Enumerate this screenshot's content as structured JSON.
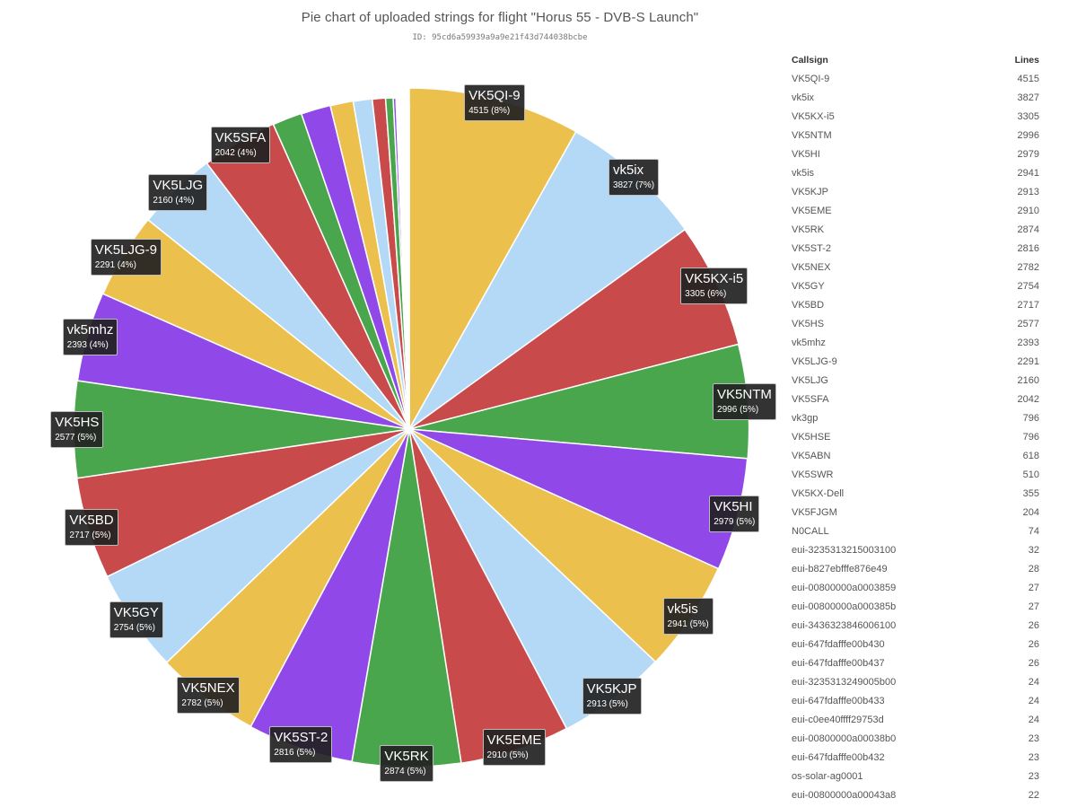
{
  "title": "Pie chart of uploaded strings for flight \"Horus 55 - DVB-S Launch\"",
  "subtitle": "ID: 95cd6a59939a9a9e21f43d744038bcbe",
  "table": {
    "headers": {
      "callsign": "Callsign",
      "lines": "Lines"
    },
    "rows": [
      {
        "callsign": "VK5QI-9",
        "lines": "4515"
      },
      {
        "callsign": "vk5ix",
        "lines": "3827"
      },
      {
        "callsign": "VK5KX-i5",
        "lines": "3305"
      },
      {
        "callsign": "VK5NTM",
        "lines": "2996"
      },
      {
        "callsign": "VK5HI",
        "lines": "2979"
      },
      {
        "callsign": "vk5is",
        "lines": "2941"
      },
      {
        "callsign": "VK5KJP",
        "lines": "2913"
      },
      {
        "callsign": "VK5EME",
        "lines": "2910"
      },
      {
        "callsign": "VK5RK",
        "lines": "2874"
      },
      {
        "callsign": "VK5ST-2",
        "lines": "2816"
      },
      {
        "callsign": "VK5NEX",
        "lines": "2782"
      },
      {
        "callsign": "VK5GY",
        "lines": "2754"
      },
      {
        "callsign": "VK5BD",
        "lines": "2717"
      },
      {
        "callsign": "VK5HS",
        "lines": "2577"
      },
      {
        "callsign": "vk5mhz",
        "lines": "2393"
      },
      {
        "callsign": "VK5LJG-9",
        "lines": "2291"
      },
      {
        "callsign": "VK5LJG",
        "lines": "2160"
      },
      {
        "callsign": "VK5SFA",
        "lines": "2042"
      },
      {
        "callsign": "vk3gp",
        "lines": "796"
      },
      {
        "callsign": "VK5HSE",
        "lines": "796"
      },
      {
        "callsign": "VK5ABN",
        "lines": "618"
      },
      {
        "callsign": "VK5SWR",
        "lines": "510"
      },
      {
        "callsign": "VK5KX-Dell",
        "lines": "355"
      },
      {
        "callsign": "VK5FJGM",
        "lines": "204"
      },
      {
        "callsign": "N0CALL",
        "lines": "74"
      },
      {
        "callsign": "eui-3235313215003100",
        "lines": "32"
      },
      {
        "callsign": "eui-b827ebfffe876e49",
        "lines": "28"
      },
      {
        "callsign": "eui-00800000a0003859",
        "lines": "27"
      },
      {
        "callsign": "eui-00800000a000385b",
        "lines": "27"
      },
      {
        "callsign": "eui-3436323846006100",
        "lines": "26"
      },
      {
        "callsign": "eui-647fdafffe00b430",
        "lines": "26"
      },
      {
        "callsign": "eui-647fdafffe00b437",
        "lines": "26"
      },
      {
        "callsign": "eui-3235313249005b00",
        "lines": "24"
      },
      {
        "callsign": "eui-647fdafffe00b433",
        "lines": "24"
      },
      {
        "callsign": "eui-c0ee40ffff29753d",
        "lines": "24"
      },
      {
        "callsign": "eui-00800000a00038b0",
        "lines": "23"
      },
      {
        "callsign": "eui-647fdafffe00b432",
        "lines": "23"
      },
      {
        "callsign": "os-solar-ag0001",
        "lines": "23"
      },
      {
        "callsign": "eui-00800000a00043a8",
        "lines": "22"
      }
    ]
  },
  "chart_data": {
    "type": "pie",
    "title": "Pie chart of uploaded strings for flight \"Horus 55 - DVB-S Launch\"",
    "subtitle": "ID: 95cd6a59939a9a9e21f43d744038bcbe",
    "colors": [
      "#ecc04d",
      "#b3d9f7",
      "#c94a4a",
      "#4aa64d",
      "#9049e8"
    ],
    "slices": [
      {
        "label": "VK5QI-9",
        "value": 4515,
        "pct_label": "4515 (8%)"
      },
      {
        "label": "vk5ix",
        "value": 3827,
        "pct_label": "3827 (7%)"
      },
      {
        "label": "VK5KX-i5",
        "value": 3305,
        "pct_label": "3305 (6%)"
      },
      {
        "label": "VK5NTM",
        "value": 2996,
        "pct_label": "2996 (5%)"
      },
      {
        "label": "VK5HI",
        "value": 2979,
        "pct_label": "2979 (5%)"
      },
      {
        "label": "vk5is",
        "value": 2941,
        "pct_label": "2941 (5%)"
      },
      {
        "label": "VK5KJP",
        "value": 2913,
        "pct_label": "2913 (5%)"
      },
      {
        "label": "VK5EME",
        "value": 2910,
        "pct_label": "2910 (5%)"
      },
      {
        "label": "VK5RK",
        "value": 2874,
        "pct_label": "2874 (5%)"
      },
      {
        "label": "VK5ST-2",
        "value": 2816,
        "pct_label": "2816 (5%)"
      },
      {
        "label": "VK5NEX",
        "value": 2782,
        "pct_label": "2782 (5%)"
      },
      {
        "label": "VK5GY",
        "value": 2754,
        "pct_label": "2754 (5%)"
      },
      {
        "label": "VK5BD",
        "value": 2717,
        "pct_label": "2717 (5%)"
      },
      {
        "label": "VK5HS",
        "value": 2577,
        "pct_label": "2577 (5%)"
      },
      {
        "label": "vk5mhz",
        "value": 2393,
        "pct_label": "2393 (4%)"
      },
      {
        "label": "VK5LJG-9",
        "value": 2291,
        "pct_label": "2291 (4%)"
      },
      {
        "label": "VK5LJG",
        "value": 2160,
        "pct_label": "2160 (4%)"
      },
      {
        "label": "VK5SFA",
        "value": 2042,
        "pct_label": "2042 (4%)"
      },
      {
        "label": "vk3gp",
        "value": 796
      },
      {
        "label": "VK5HSE",
        "value": 796
      },
      {
        "label": "VK5ABN",
        "value": 618
      },
      {
        "label": "VK5SWR",
        "value": 510
      },
      {
        "label": "VK5KX-Dell",
        "value": 355
      },
      {
        "label": "VK5FJGM",
        "value": 204
      },
      {
        "label": "N0CALL",
        "value": 74
      },
      {
        "label": "eui-3235313215003100",
        "value": 32
      },
      {
        "label": "eui-b827ebfffe876e49",
        "value": 28
      },
      {
        "label": "eui-00800000a0003859",
        "value": 27
      },
      {
        "label": "eui-00800000a000385b",
        "value": 27
      },
      {
        "label": "eui-3436323846006100",
        "value": 26
      },
      {
        "label": "eui-647fdafffe00b430",
        "value": 26
      },
      {
        "label": "eui-647fdafffe00b437",
        "value": 26
      },
      {
        "label": "eui-3235313249005b00",
        "value": 24
      },
      {
        "label": "eui-647fdafffe00b433",
        "value": 24
      },
      {
        "label": "eui-c0ee40ffff29753d",
        "value": 24
      },
      {
        "label": "eui-00800000a00038b0",
        "value": 23
      },
      {
        "label": "eui-647fdafffe00b432",
        "value": 23
      },
      {
        "label": "os-solar-ag0001",
        "value": 23
      },
      {
        "label": "eui-00800000a00043a8",
        "value": 22
      }
    ]
  }
}
